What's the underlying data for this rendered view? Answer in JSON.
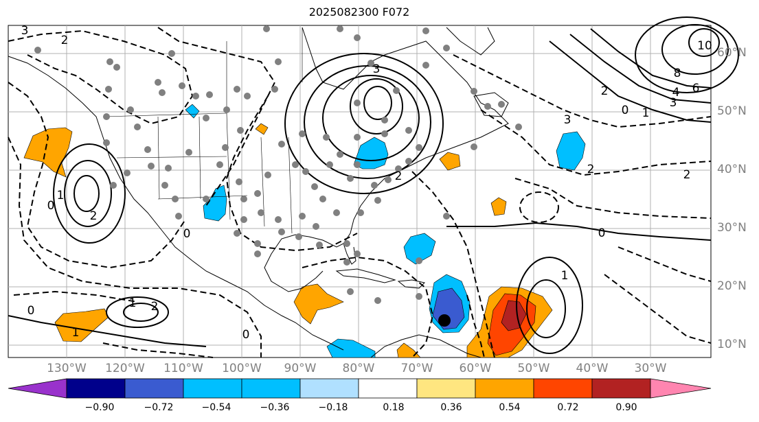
{
  "title": "2025082300 F072",
  "longitude_labels": [
    "130°W",
    "120°W",
    "110°W",
    "100°W",
    "90°W",
    "80°W",
    "70°W",
    "60°W",
    "50°W",
    "40°W",
    "30°W"
  ],
  "latitude_labels": [
    "60°N",
    "50°N",
    "40°N",
    "30°N",
    "20°N",
    "10°N"
  ],
  "colorbar": {
    "ticks": [
      "−0.90",
      "−0.72",
      "−0.54",
      "−0.36",
      "−0.18",
      "0.18",
      "0.36",
      "0.54",
      "0.72",
      "0.90"
    ],
    "colors": [
      "#9932cc",
      "#00008b",
      "#3a5bd0",
      "#00bfff",
      "#b0e0ff",
      "#ffffff",
      "#ffe680",
      "#ffa500",
      "#ff4500",
      "#b22222",
      "#ff85b0"
    ]
  },
  "contour_labels": [
    "3",
    "2",
    "2",
    "1",
    "0",
    "10",
    "8",
    "6",
    "4",
    "3",
    "2",
    "0",
    "1",
    "3",
    "2",
    "1",
    "0",
    "2",
    "1",
    "0",
    "0",
    "1",
    "2",
    "0",
    "2",
    "3"
  ],
  "map": {
    "extent": {
      "lon": [
        -138,
        -17
      ],
      "lat": [
        8,
        65
      ]
    },
    "shaded_field_colors": {
      "positive": "#ffa500",
      "strong_positive": "#ff4500",
      "max_positive": "#b22222",
      "negative": "#00bfff",
      "strong_negative": "#3a5bd0"
    }
  }
}
